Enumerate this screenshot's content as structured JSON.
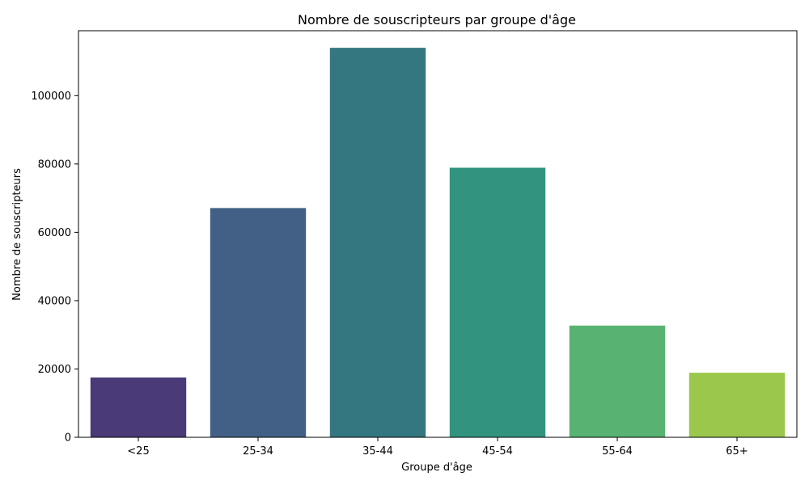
{
  "chart_data": {
    "type": "bar",
    "title": "Nombre de souscripteurs par groupe d'âge",
    "xlabel": "Groupe d'âge",
    "ylabel": "Nombre de souscripteurs",
    "categories": [
      "<25",
      "25-34",
      "35-44",
      "45-54",
      "55-64",
      "65+"
    ],
    "values": [
      17500,
      67100,
      114000,
      78900,
      32700,
      18900
    ],
    "ylim": [
      0,
      119000
    ],
    "yticks": [
      0,
      20000,
      40000,
      60000,
      80000,
      100000
    ],
    "ytick_labels": [
      "0",
      "20000",
      "40000",
      "60000",
      "80000",
      "100000"
    ],
    "colors": [
      "#4a3a77",
      "#425f86",
      "#347780",
      "#32947f",
      "#58b373",
      "#9ac74c"
    ],
    "grid": false,
    "legend": "none"
  }
}
